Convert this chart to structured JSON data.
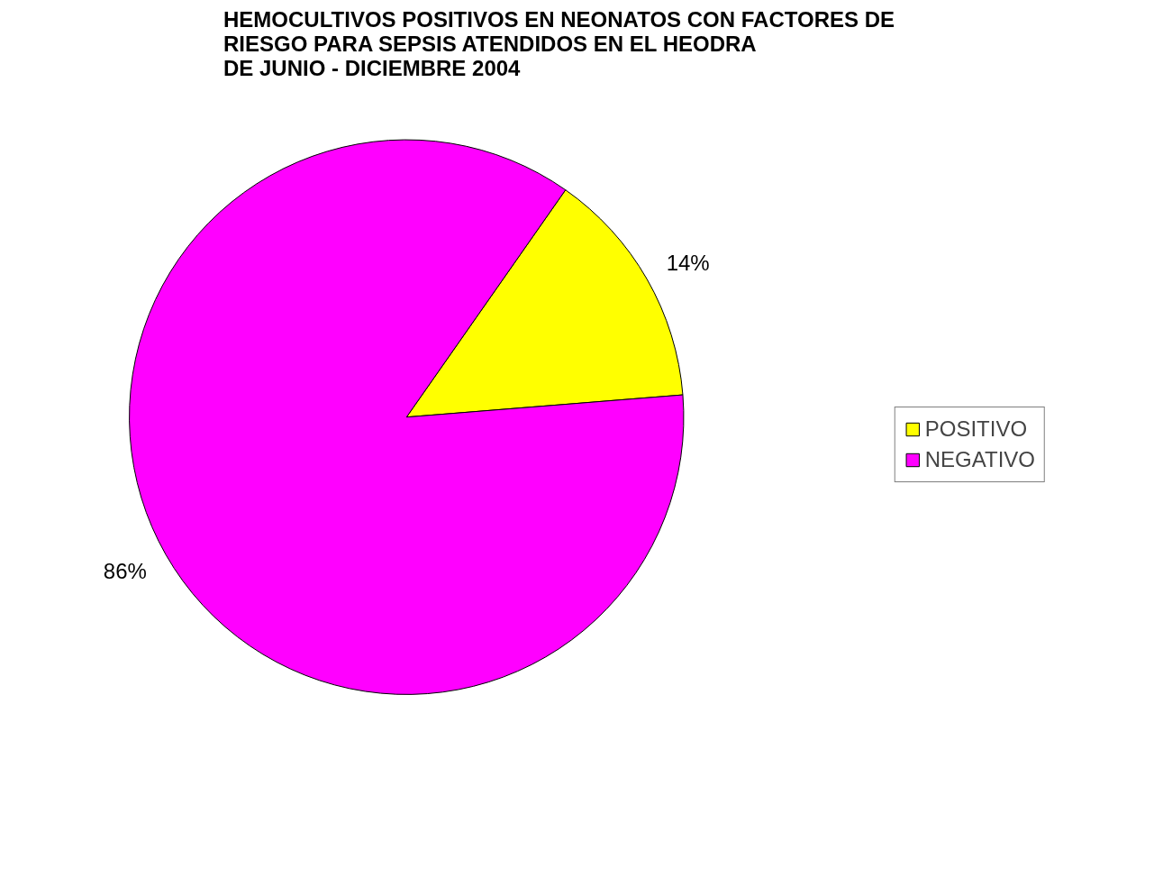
{
  "chart_data": {
    "type": "pie",
    "title": "HEMOCULTIVOS POSITIVOS EN NEONATOS CON FACTORES DE\nRIESGO PARA SEPSIS ATENDIDOS EN EL HEODRA\nDE JUNIO - DICIEMBRE 2004",
    "categories": [
      "POSITIVO",
      "NEGATIVO"
    ],
    "values": [
      14,
      86
    ],
    "colors": [
      "#ffff00",
      "#ff00ff"
    ],
    "value_labels": [
      "14%",
      "86%"
    ],
    "legend": "right"
  }
}
